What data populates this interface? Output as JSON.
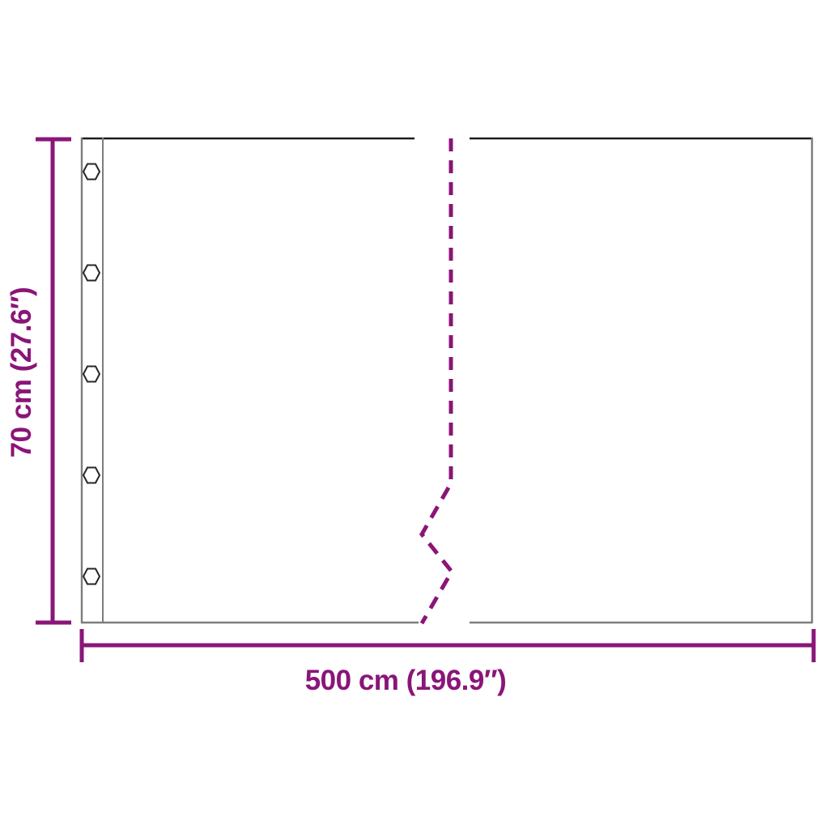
{
  "diagram": {
    "type": "product-dimension-diagram",
    "height_label": "70 cm (27.6″)",
    "width_label": "500 cm (196.9″)",
    "grommet_count": 5,
    "colors": {
      "dimension": "#8A1578",
      "outline": "#7D7D7D",
      "outline_top": "#1C1C1C",
      "grommet_stroke": "#262626",
      "background": "#FFFFFF"
    }
  }
}
